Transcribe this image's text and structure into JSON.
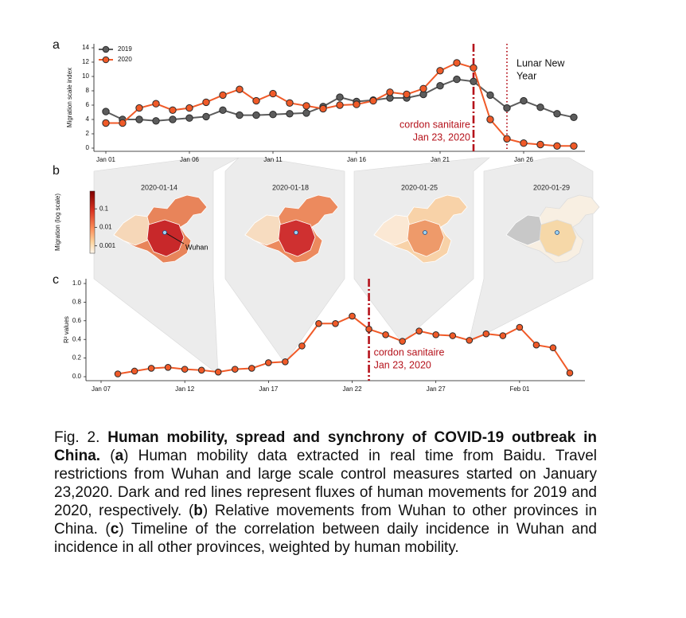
{
  "panel_labels": [
    "a",
    "b",
    "c"
  ],
  "chart_data": [
    {
      "type": "line",
      "x": [
        "Jan 01",
        "Jan 02",
        "Jan 03",
        "Jan 04",
        "Jan 05",
        "Jan 06",
        "Jan 07",
        "Jan 08",
        "Jan 09",
        "Jan 10",
        "Jan 11",
        "Jan 12",
        "Jan 13",
        "Jan 14",
        "Jan 15",
        "Jan 16",
        "Jan 17",
        "Jan 18",
        "Jan 19",
        "Jan 20",
        "Jan 21",
        "Jan 22",
        "Jan 23",
        "Jan 24",
        "Jan 25",
        "Jan 26",
        "Jan 27",
        "Jan 28",
        "Jan 29"
      ],
      "series": [
        {
          "name": "2019",
          "color": "#5c5c5c",
          "values": [
            5.1,
            4.0,
            4.0,
            3.8,
            4.0,
            4.2,
            4.4,
            5.3,
            4.6,
            4.6,
            4.7,
            4.8,
            4.9,
            5.8,
            7.1,
            6.5,
            6.7,
            7.0,
            7.0,
            7.5,
            8.7,
            9.6,
            9.3,
            7.4,
            5.6,
            6.6,
            5.7,
            4.8,
            4.3
          ]
        },
        {
          "name": "2020",
          "color": "#f05a28",
          "values": [
            3.5,
            3.5,
            5.6,
            6.2,
            5.3,
            5.6,
            6.4,
            7.4,
            8.2,
            6.6,
            7.6,
            6.3,
            5.9,
            5.5,
            6.0,
            6.1,
            6.6,
            7.8,
            7.5,
            8.3,
            10.8,
            11.9,
            11.2,
            4.0,
            1.3,
            0.7,
            0.5,
            0.3,
            0.3
          ]
        }
      ],
      "ylabel": "Migration scale index",
      "xlim": [
        "Jan 01",
        "Jan 29"
      ],
      "xticks": [
        "Jan 01",
        "Jan 06",
        "Jan 11",
        "Jan 16",
        "Jan 21",
        "Jan 26"
      ],
      "ylim": [
        0,
        14
      ],
      "yticks": [
        0,
        2,
        4,
        6,
        8,
        10,
        12,
        14
      ],
      "legend": "upper left",
      "annotations": [
        {
          "x": "Jan 23",
          "style": "dashdot",
          "color": "#b5121b",
          "lines": [
            "cordon sanitaire",
            "Jan 23, 2020"
          ]
        },
        {
          "x": "Jan 25",
          "style": "dotted",
          "color": "#b5121b",
          "text_color": "#111",
          "lines": [
            "Lunar New",
            "Year"
          ]
        }
      ]
    },
    {
      "type": "line",
      "x": [
        "Jan 08",
        "Jan 09",
        "Jan 10",
        "Jan 11",
        "Jan 12",
        "Jan 13",
        "Jan 14",
        "Jan 15",
        "Jan 16",
        "Jan 17",
        "Jan 18",
        "Jan 19",
        "Jan 20",
        "Jan 21",
        "Jan 22",
        "Jan 23",
        "Jan 24",
        "Jan 25",
        "Jan 26",
        "Jan 27",
        "Jan 28",
        "Jan 29",
        "Jan 30",
        "Jan 31",
        "Feb 01",
        "Feb 02",
        "Feb 03",
        "Feb 04"
      ],
      "series": [
        {
          "color": "#f05a28",
          "values": [
            0.03,
            0.06,
            0.09,
            0.1,
            0.08,
            0.07,
            0.05,
            0.08,
            0.09,
            0.15,
            0.16,
            0.33,
            0.57,
            0.57,
            0.65,
            0.51,
            0.45,
            0.38,
            0.49,
            0.45,
            0.44,
            0.39,
            0.46,
            0.44,
            0.53,
            0.34,
            0.31,
            0.04
          ]
        }
      ],
      "ylabel": "R² values",
      "xlim": [
        "Jan 07",
        "Feb 04"
      ],
      "xticks": [
        "Jan 07",
        "Jan 12",
        "Jan 17",
        "Jan 22",
        "Jan 27",
        "Feb 01"
      ],
      "ylim": [
        0,
        1
      ],
      "yticks": [
        {
          "value": 0,
          "label": "0.0"
        },
        0.2,
        0.4,
        0.6,
        0.8,
        {
          "value": 1,
          "label": "1.0"
        }
      ],
      "annotations": [
        {
          "x": "Jan 23",
          "style": "dashdot",
          "color": "#b5121b",
          "lines": [
            "cordon sanitaire",
            "Jan 23, 2020"
          ]
        }
      ]
    }
  ],
  "maps": {
    "panels": [
      {
        "date": "2020-01-14"
      },
      {
        "date": "2020-01-18"
      },
      {
        "date": "2020-01-25"
      },
      {
        "date": "2020-01-29"
      }
    ],
    "city": "Wuhan",
    "colorbar": {
      "label": "Migration (log scale)",
      "log": true,
      "lim": [
        0.0004,
        0.9
      ],
      "ticks": [
        0.1,
        0.01,
        0.001
      ]
    }
  },
  "caption": {
    "segments": [
      {
        "text": "Fig. 2. ",
        "bold": false
      },
      {
        "text": "Human mobility, spread and synchrony of COVID-19 outbreak in China.",
        "bold": true
      },
      {
        "text": " (",
        "bold": false
      },
      {
        "text": "a",
        "bold": true
      },
      {
        "text": ") Human mobility data extracted in real time from Baidu. Travel restrictions from Wuhan and large scale control measures started on January 23,2020. Dark and red lines represent fluxes of human movements for 2019 and 2020, respectively. (",
        "bold": false
      },
      {
        "text": "b",
        "bold": true
      },
      {
        "text": ") Relative movements from Wuhan to other provinces in China. (",
        "bold": false
      },
      {
        "text": "c",
        "bold": true
      },
      {
        "text": ") Timeline of the correlation between daily incidence in Wuhan and incidence in all other provinces, weighted by human mobility.",
        "bold": false
      }
    ]
  }
}
